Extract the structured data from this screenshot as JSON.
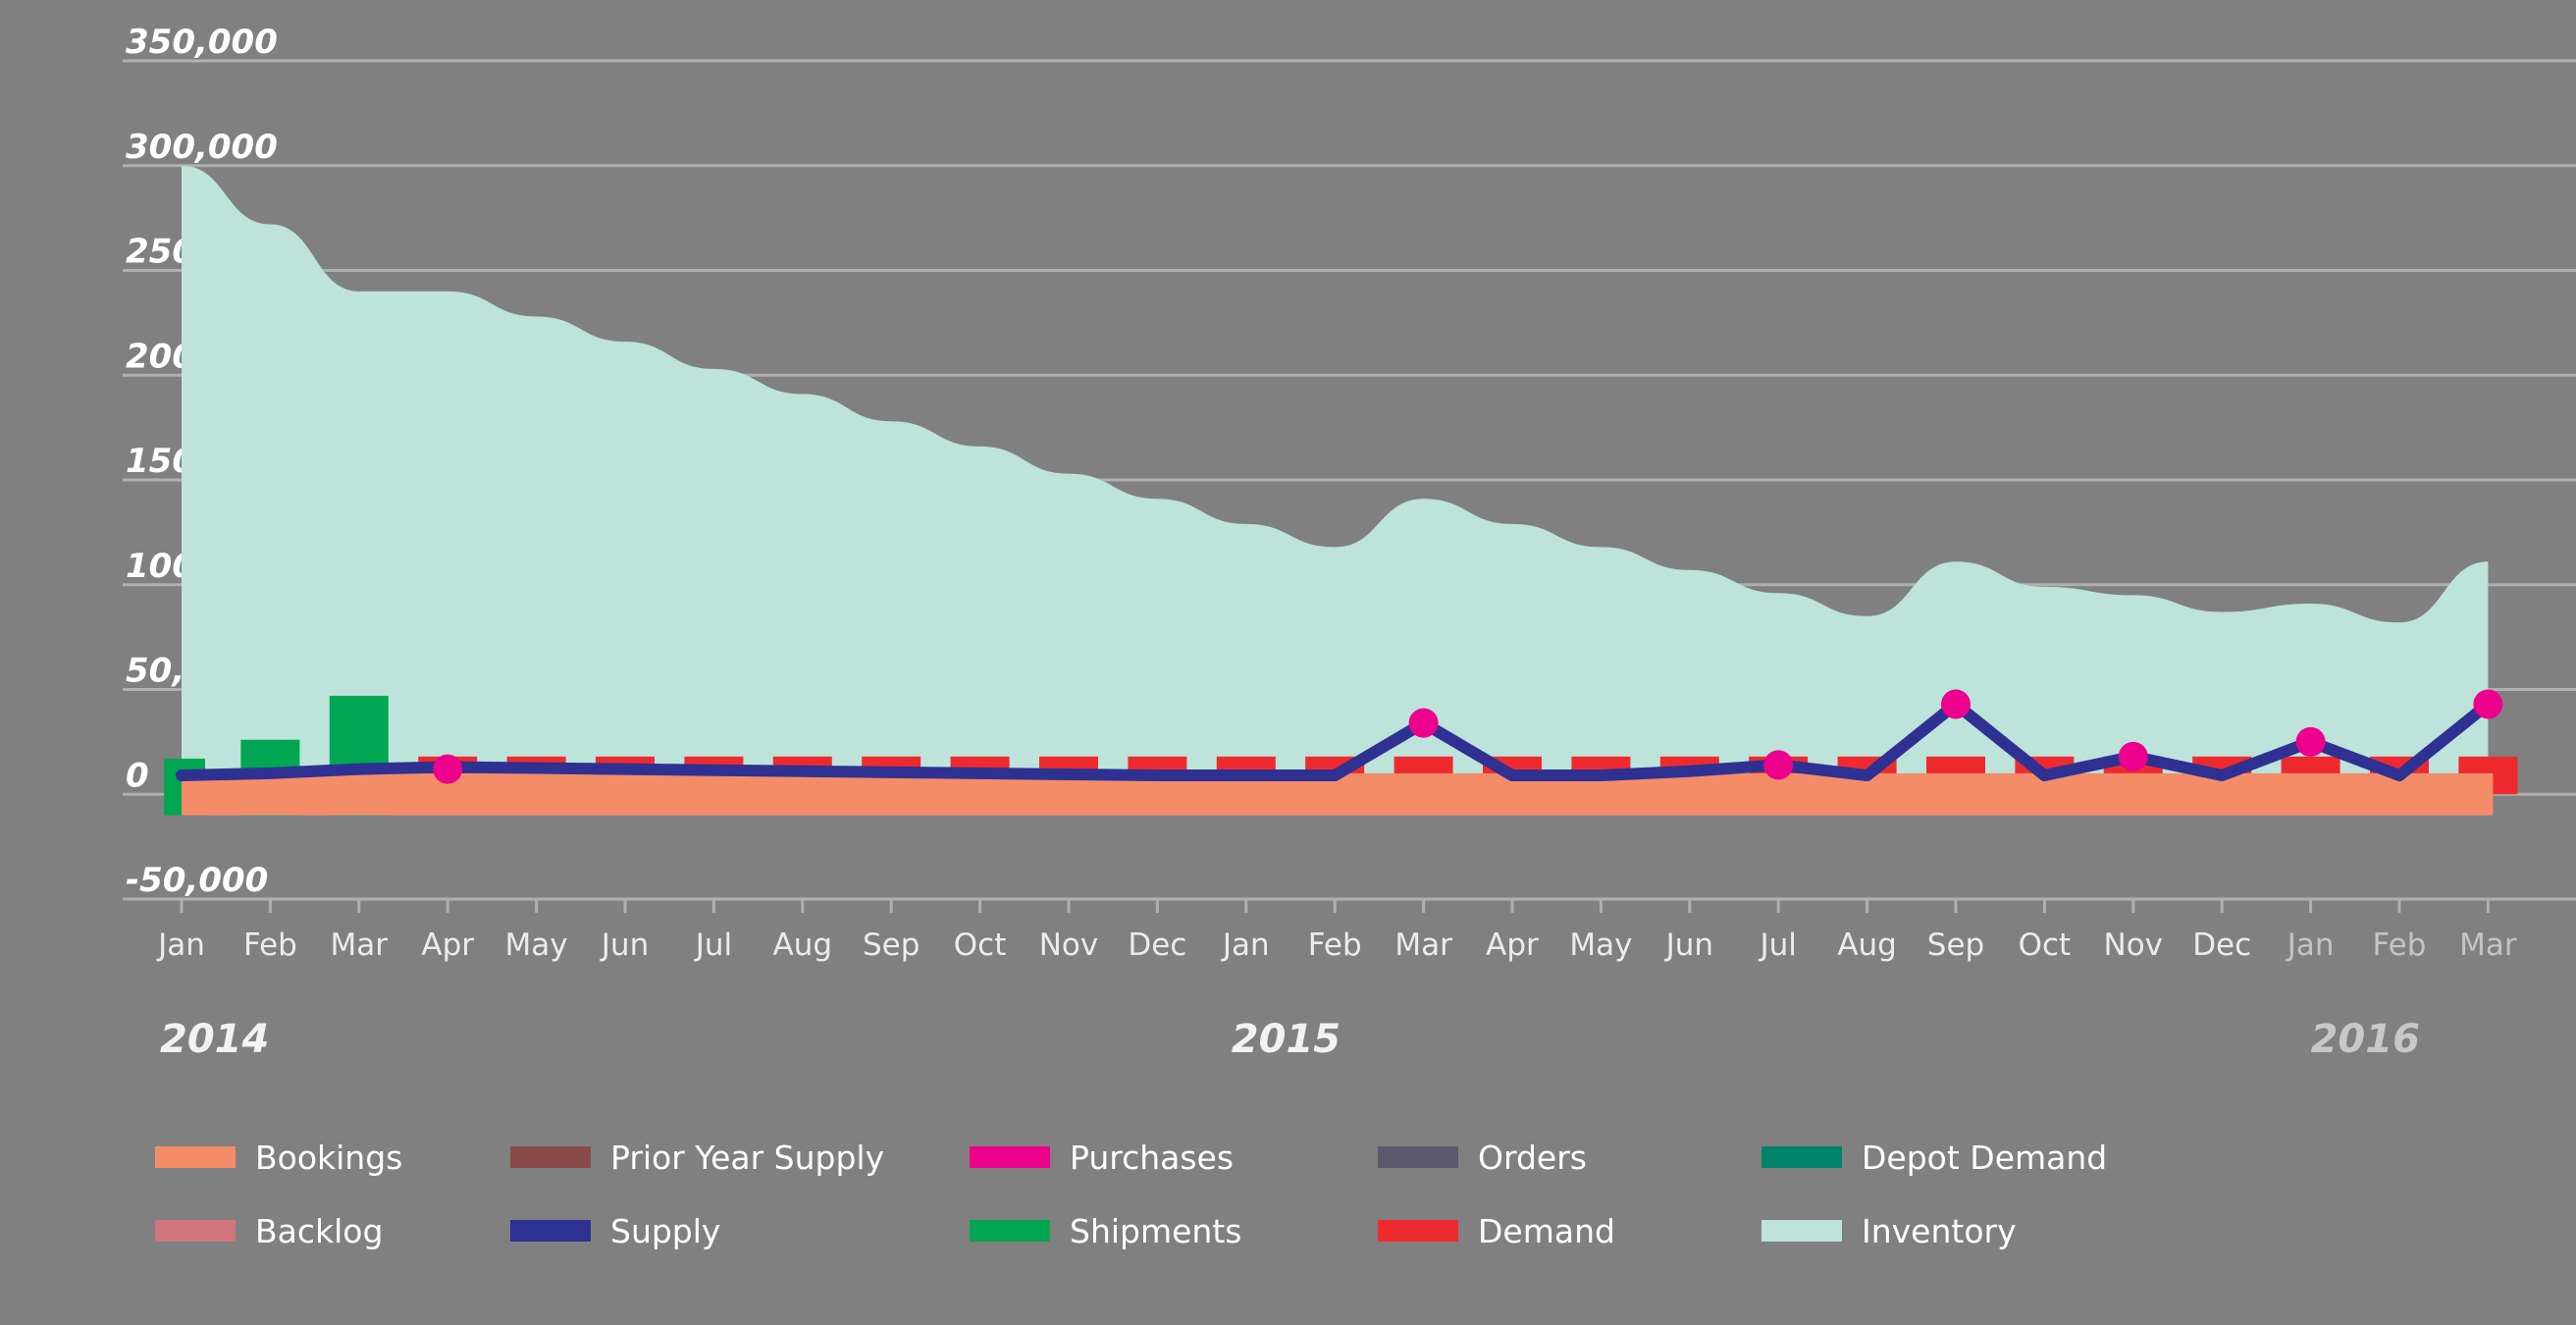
{
  "chart_data": {
    "type": "area",
    "title": "",
    "xlabel": "",
    "ylabel": "",
    "ylim": [
      -50000,
      350000
    ],
    "y_ticks": [
      350000,
      300000,
      250000,
      200000,
      150000,
      100000,
      50000,
      0,
      -50000
    ],
    "y_tick_labels": [
      "350,000",
      "300,000",
      "250,000",
      "200,000",
      "150,000",
      "100,000",
      "50,000",
      "0",
      "-50,000"
    ],
    "grid": true,
    "categories": [
      "Jan",
      "Feb",
      "Mar",
      "Apr",
      "May",
      "Jun",
      "Jul",
      "Aug",
      "Sep",
      "Oct",
      "Nov",
      "Dec",
      "Jan",
      "Feb",
      "Mar",
      "Apr",
      "May",
      "Jun",
      "Jul",
      "Aug",
      "Sep",
      "Oct",
      "Nov",
      "Dec",
      "Jan",
      "Feb",
      "Mar"
    ],
    "dim_category_indices": [
      24,
      25,
      26
    ],
    "years": [
      {
        "label": "2014",
        "start_index": 0,
        "dim": false
      },
      {
        "label": "2015",
        "start_index": 12,
        "dim": false
      },
      {
        "label": "2016",
        "start_index": 24,
        "dim": true
      }
    ],
    "legend_position": "bottom",
    "series": [
      {
        "name": "Inventory",
        "type": "area",
        "color": "#bde3da",
        "values": [
          300000,
          272000,
          240000,
          240000,
          228000,
          216000,
          203000,
          191000,
          178000,
          166000,
          153000,
          141000,
          129000,
          118000,
          141000,
          129000,
          118000,
          107000,
          96000,
          85000,
          111000,
          99000,
          95000,
          87000,
          91000,
          82000,
          111000
        ]
      },
      {
        "name": "Bookings",
        "type": "bar",
        "color": "#f58c68",
        "values": [
          10000,
          10000,
          10000,
          10000,
          10000,
          10000,
          10000,
          10000,
          10000,
          10000,
          10000,
          10000,
          10000,
          10000,
          10000,
          10000,
          10000,
          10000,
          10000,
          10000,
          10000,
          10000,
          10000,
          10000,
          10000,
          10000,
          10000
        ]
      },
      {
        "name": "Demand",
        "type": "bar",
        "color": "#ee2a2f",
        "values": [
          null,
          null,
          null,
          18000,
          18000,
          18000,
          18000,
          18000,
          18000,
          18000,
          18000,
          18000,
          18000,
          18000,
          18000,
          18000,
          18000,
          18000,
          18000,
          18000,
          18000,
          18000,
          18000,
          18000,
          18000,
          18000,
          18000
        ]
      },
      {
        "name": "Shipments",
        "type": "bar",
        "color": "#00a651",
        "values": [
          17000,
          26000,
          47000,
          null,
          null,
          null,
          null,
          null,
          null,
          null,
          null,
          null,
          null,
          null,
          null,
          null,
          null,
          null,
          null,
          null,
          null,
          null,
          null,
          null,
          null,
          null,
          null
        ]
      },
      {
        "name": "Supply",
        "type": "line",
        "color": "#2e3192",
        "values": [
          9000,
          10000,
          12000,
          13000,
          12500,
          12000,
          11500,
          11000,
          10500,
          10000,
          9500,
          9000,
          9000,
          9000,
          34000,
          9000,
          9000,
          11000,
          14000,
          9000,
          43000,
          9000,
          18000,
          9000,
          25000,
          9000,
          43000
        ]
      },
      {
        "name": "Purchases",
        "type": "scatter",
        "color": "#ec008c",
        "points": [
          {
            "x": 3,
            "y": 12000
          },
          {
            "x": 14,
            "y": 34000
          },
          {
            "x": 18,
            "y": 14000
          },
          {
            "x": 20,
            "y": 43000
          },
          {
            "x": 22,
            "y": 18000
          },
          {
            "x": 24,
            "y": 25000
          },
          {
            "x": 26,
            "y": 43000
          }
        ]
      }
    ],
    "legend": [
      {
        "label": "Bookings",
        "color": "#f58c68"
      },
      {
        "label": "Prior Year Supply",
        "color": "#8b4a4a"
      },
      {
        "label": "Purchases",
        "color": "#ec008c"
      },
      {
        "label": "Orders",
        "color": "#5d5a6e"
      },
      {
        "label": "Depot Demand",
        "color": "#00836b"
      },
      {
        "label": "Backlog",
        "color": "#d0747e"
      },
      {
        "label": "Supply",
        "color": "#2e3192"
      },
      {
        "label": "Shipments",
        "color": "#00a651"
      },
      {
        "label": "Demand",
        "color": "#ee2a2f"
      },
      {
        "label": "Inventory",
        "color": "#bde3da"
      }
    ]
  }
}
